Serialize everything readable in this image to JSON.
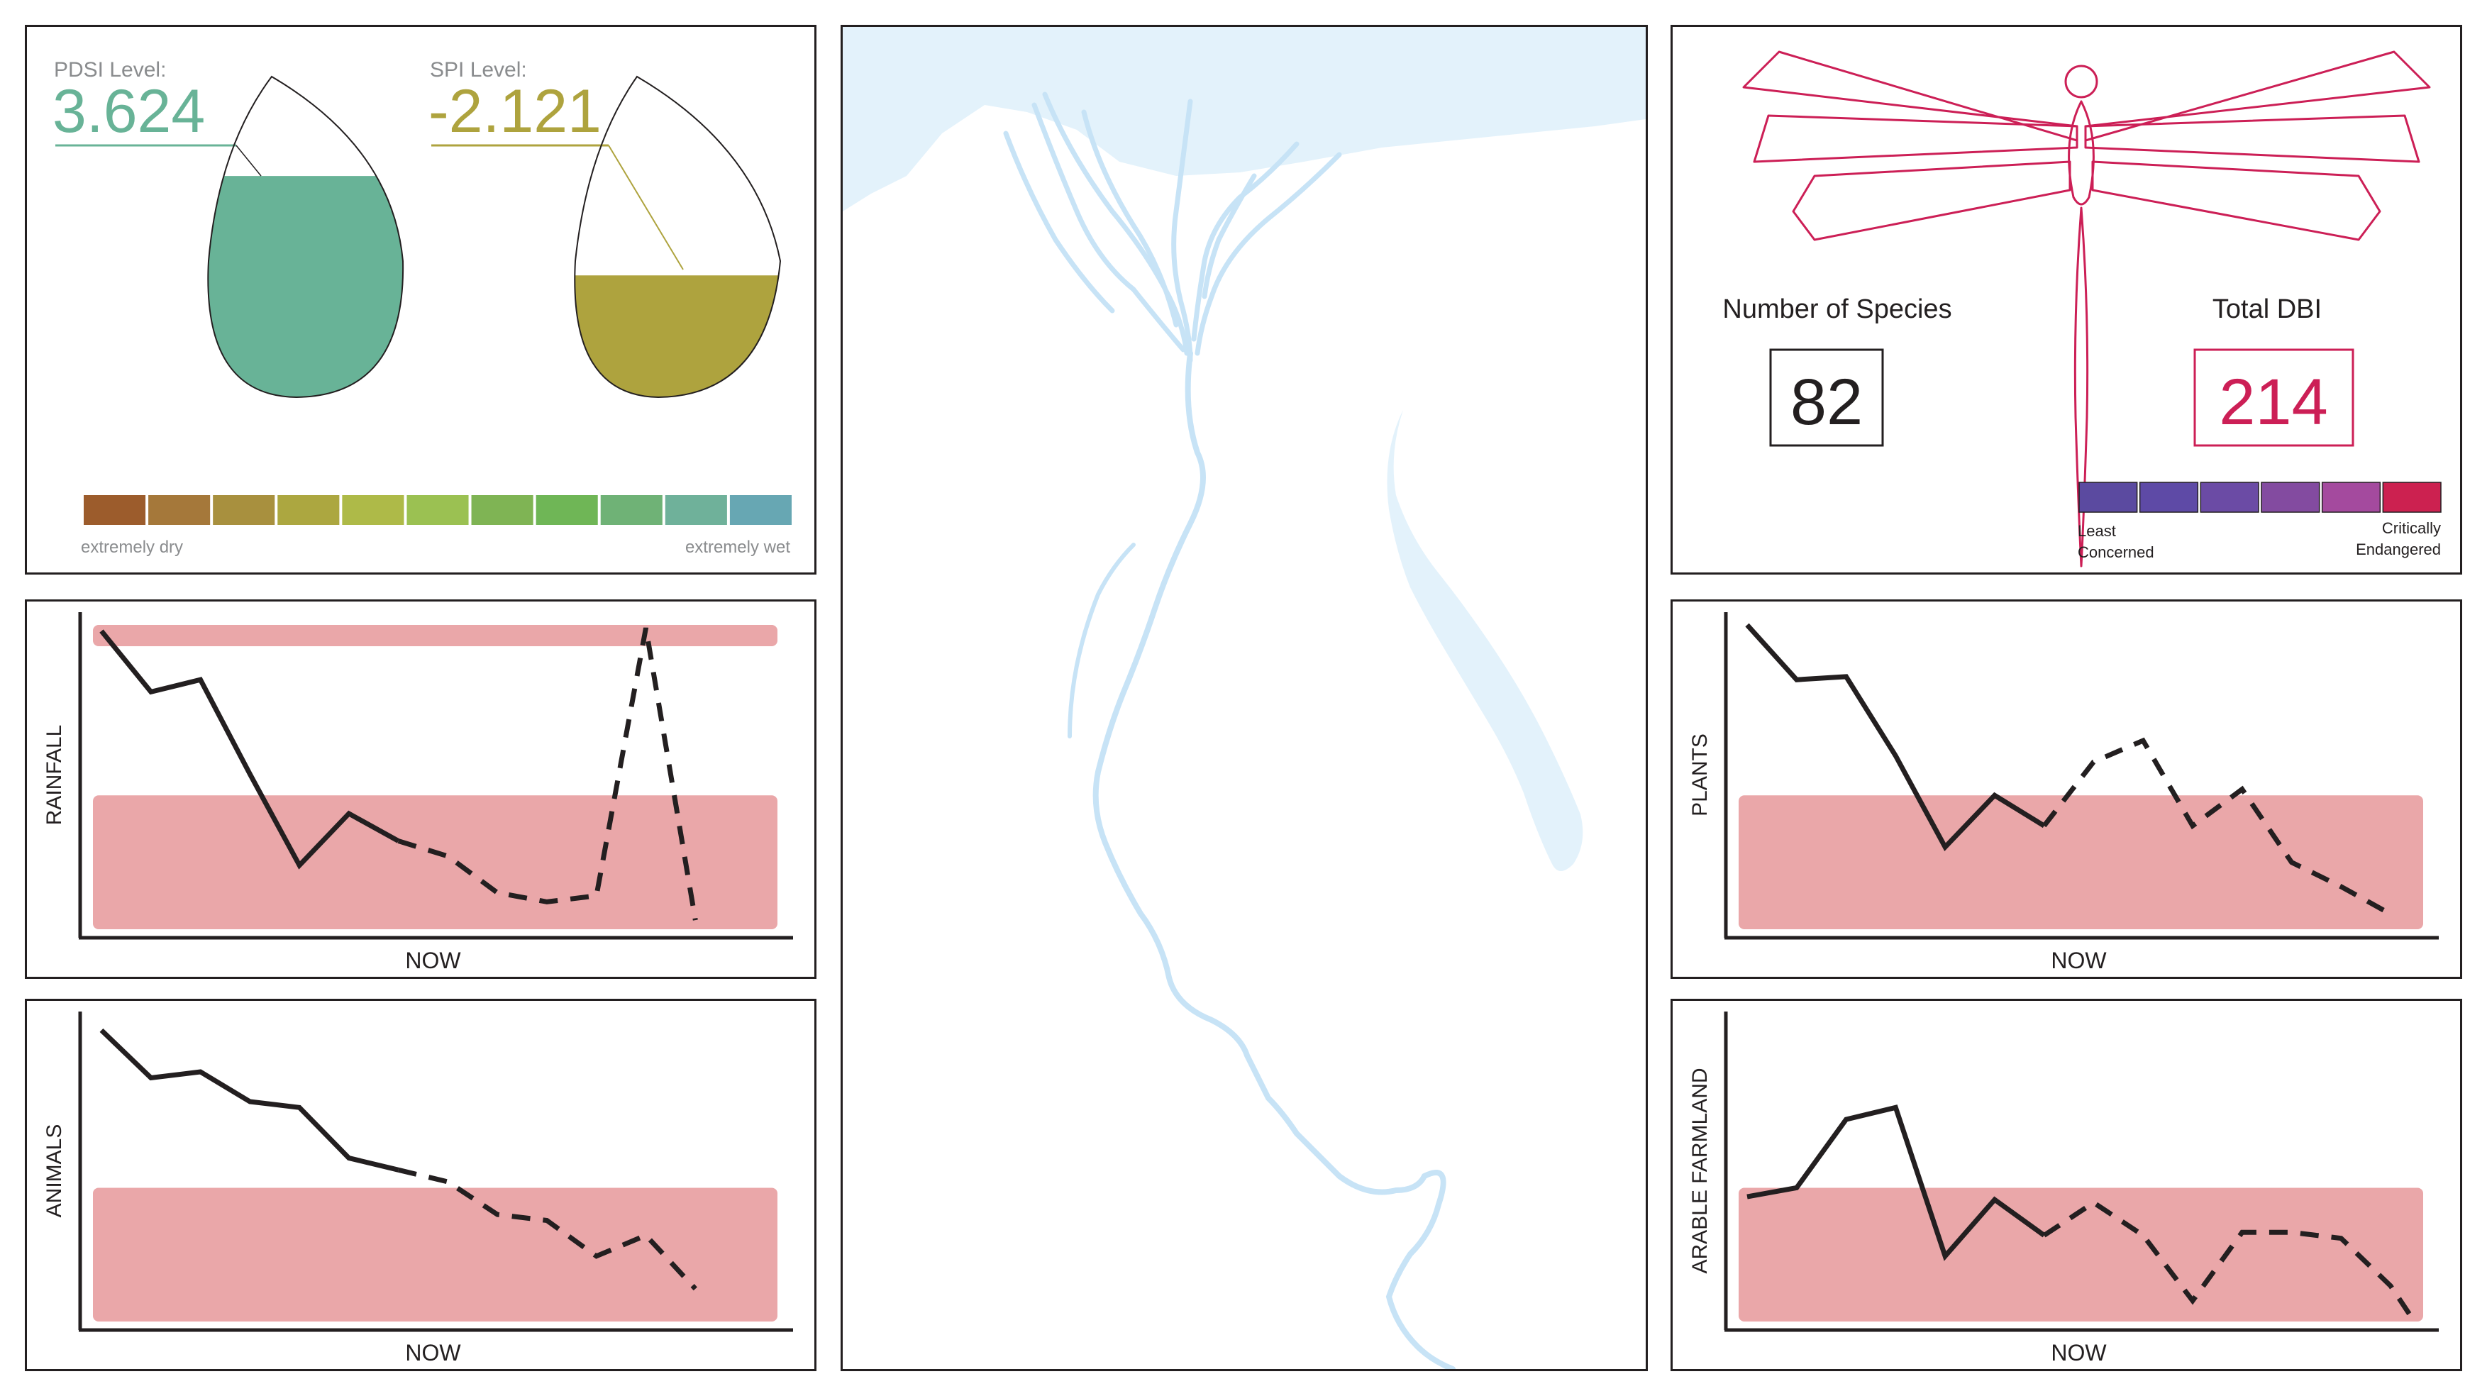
{
  "drought": {
    "pdsi": {
      "label": "PDSI Level:",
      "value": "3.624",
      "fill_fraction": 0.69,
      "color": "#68b397"
    },
    "spi": {
      "label": "SPI Level:",
      "value": "-2.121",
      "fill_fraction": 0.38,
      "color": "#aea33e"
    },
    "scale": {
      "colors": [
        "#9c5c2c",
        "#a5783a",
        "#a8903e",
        "#aca740",
        "#aeba48",
        "#9bc152",
        "#7fb454",
        "#6fb656",
        "#6fb276",
        "#6fb19a",
        "#67a7b3"
      ],
      "left_label": "extremely dry",
      "right_label": "extremely wet"
    }
  },
  "biodiversity": {
    "species": {
      "label": "Number of Species",
      "value": "82"
    },
    "dbi": {
      "label": "Total DBI",
      "value": "214"
    },
    "scale": {
      "colors": [
        "#5b4aa0",
        "#5e4aa6",
        "#6b4ba5",
        "#834ba0",
        "#a44a9e",
        "#cc2150"
      ],
      "left_label_line1": "Least",
      "left_label_line2": "Concerned",
      "right_label_line1": "Critically",
      "right_label_line2": "Endangered"
    },
    "accent_color": "#cc1f56"
  },
  "map": {
    "water_color": "#e3f2fb",
    "river_color": "#c7e3f6"
  },
  "chart_data": [
    {
      "type": "line",
      "id": "rainfall",
      "ylabel": "RAINFALL",
      "xlabel": "NOW",
      "x": [
        0,
        1,
        2,
        3,
        4,
        5,
        6,
        7,
        8,
        9,
        10,
        11,
        12,
        13
      ],
      "solid": [
        [
          0,
          0.98
        ],
        [
          1,
          0.78
        ],
        [
          2,
          0.82
        ],
        [
          3,
          0.51
        ],
        [
          4,
          0.21
        ],
        [
          5,
          0.38
        ],
        [
          6,
          0.29
        ]
      ],
      "dashed": [
        [
          6,
          0.29
        ],
        [
          7,
          0.24
        ],
        [
          8,
          0.12
        ],
        [
          9,
          0.09
        ],
        [
          10,
          0.11
        ],
        [
          11,
          0.99
        ],
        [
          12,
          0.03
        ]
      ],
      "bands": [
        [
          0.93,
          1.0
        ],
        [
          0.0,
          0.44
        ]
      ]
    },
    {
      "type": "line",
      "id": "animals",
      "ylabel": "ANIMALS",
      "xlabel": "NOW",
      "x": [
        0,
        1,
        2,
        3,
        4,
        5,
        6,
        7,
        8,
        9,
        10,
        11,
        12,
        13
      ],
      "solid": [
        [
          0,
          0.98
        ],
        [
          1,
          0.82
        ],
        [
          2,
          0.84
        ],
        [
          3,
          0.74
        ],
        [
          4,
          0.72
        ],
        [
          5,
          0.55
        ],
        [
          6,
          0.51
        ]
      ],
      "dashed": [
        [
          6,
          0.51
        ],
        [
          7,
          0.47
        ],
        [
          8,
          0.36
        ],
        [
          9,
          0.34
        ],
        [
          10,
          0.22
        ],
        [
          11,
          0.29
        ],
        [
          12,
          0.11
        ]
      ],
      "bands": [
        [
          0.0,
          0.45
        ]
      ]
    },
    {
      "type": "line",
      "id": "plants",
      "ylabel": "PLANTS",
      "xlabel": "NOW",
      "x": [
        0,
        1,
        2,
        3,
        4,
        5,
        6,
        7,
        8,
        9,
        10,
        11,
        12,
        13
      ],
      "solid": [
        [
          0,
          1.0
        ],
        [
          1,
          0.82
        ],
        [
          2,
          0.83
        ],
        [
          3,
          0.57
        ],
        [
          4,
          0.27
        ],
        [
          5,
          0.44
        ],
        [
          6,
          0.34
        ]
      ],
      "dashed": [
        [
          6,
          0.34
        ],
        [
          7,
          0.55
        ],
        [
          8,
          0.62
        ],
        [
          9,
          0.34
        ],
        [
          10,
          0.46
        ],
        [
          11,
          0.22
        ],
        [
          12,
          0.14
        ],
        [
          13,
          0.05
        ]
      ],
      "bands": [
        [
          0.0,
          0.44
        ]
      ]
    },
    {
      "type": "line",
      "id": "arable",
      "ylabel": "ARABLE FARMLAND",
      "xlabel": "NOW",
      "x": [
        0,
        1,
        2,
        3,
        4,
        5,
        6,
        7,
        8,
        9,
        10,
        11,
        12,
        13
      ],
      "solid": [
        [
          0,
          0.42
        ],
        [
          1,
          0.45
        ],
        [
          2,
          0.68
        ],
        [
          3,
          0.72
        ],
        [
          4,
          0.22
        ],
        [
          5,
          0.41
        ],
        [
          6,
          0.29
        ]
      ],
      "dashed": [
        [
          6,
          0.29
        ],
        [
          7,
          0.4
        ],
        [
          8,
          0.29
        ],
        [
          9,
          0.07
        ],
        [
          10,
          0.3
        ],
        [
          11,
          0.3
        ],
        [
          12,
          0.28
        ],
        [
          13,
          0.12
        ],
        [
          13.4,
          0.02
        ]
      ],
      "bands": [
        [
          0.0,
          0.45
        ]
      ]
    }
  ]
}
